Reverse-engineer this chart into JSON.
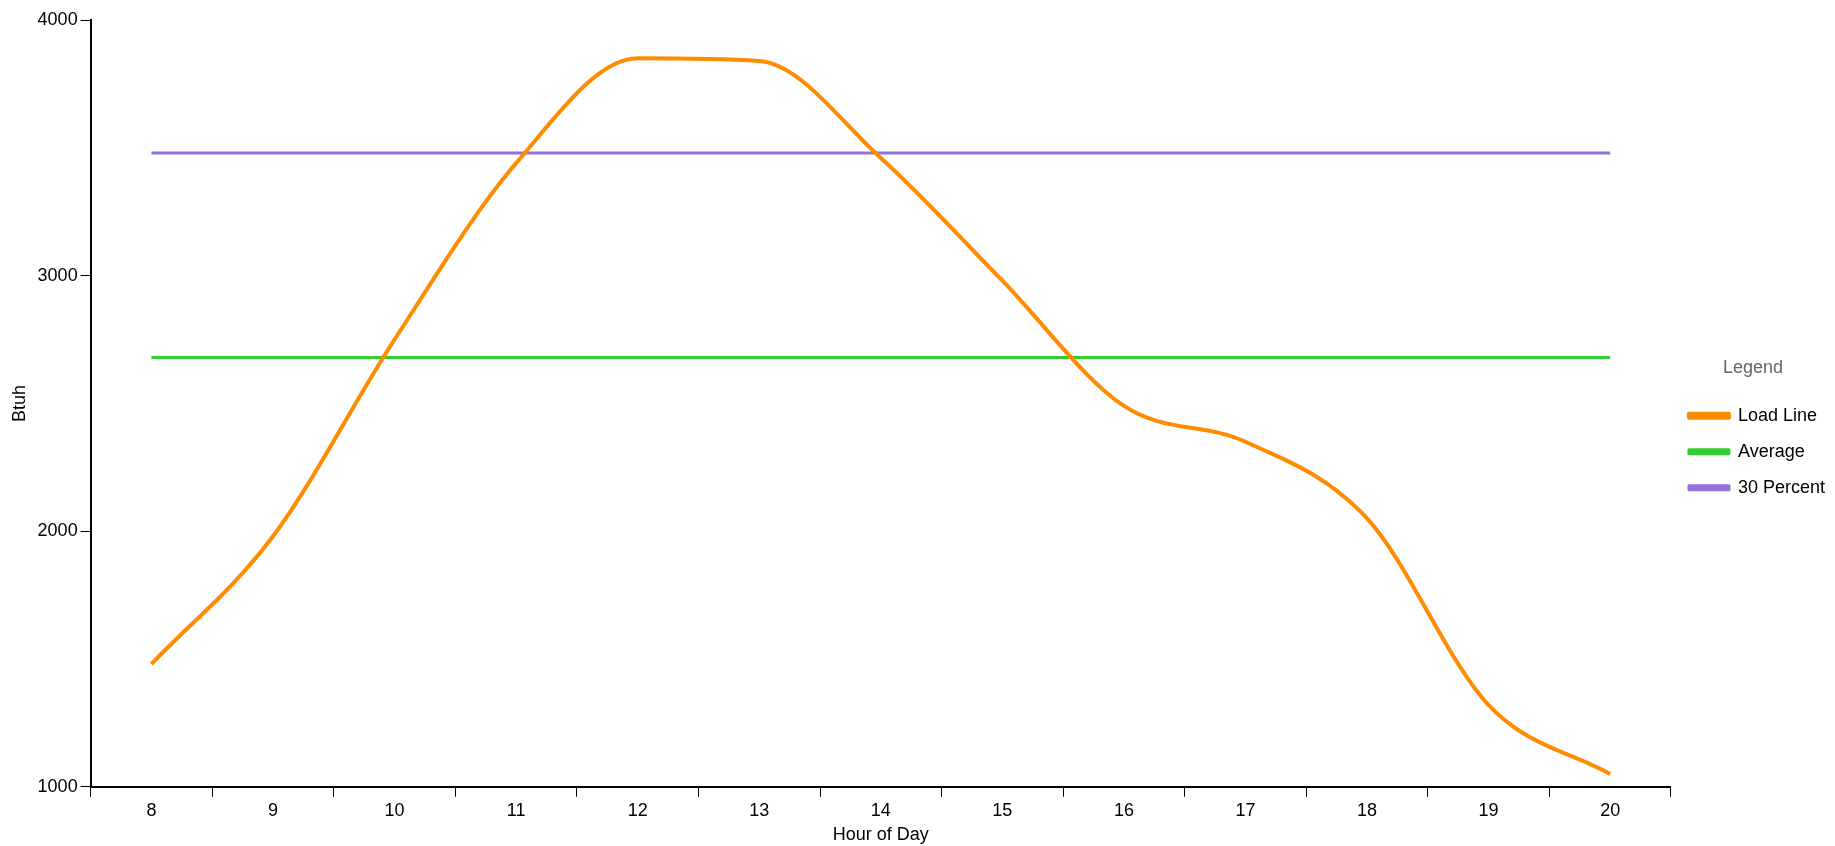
{
  "chart_data": {
    "type": "line",
    "xlabel": "Hour of Day",
    "ylabel": "Btuh",
    "legend_title": "Legend",
    "categories": [
      "8",
      "9",
      "10",
      "11",
      "12",
      "13",
      "14",
      "15",
      "16",
      "17",
      "18",
      "19",
      "20"
    ],
    "series": [
      {
        "name": "Load Line",
        "color": "#ff8c00",
        "values": [
          1480,
          1980,
          2750,
          3440,
          3850,
          3840,
          3460,
          2980,
          2490,
          2350,
          2050,
          1320,
          1050
        ]
      },
      {
        "name": "Average",
        "color": "#32cd32",
        "values": [
          2680,
          2680,
          2680,
          2680,
          2680,
          2680,
          2680,
          2680,
          2680,
          2680,
          2680,
          2680,
          2680
        ]
      },
      {
        "name": "30 Percent",
        "color": "#9370db",
        "values": [
          3480,
          3480,
          3480,
          3480,
          3480,
          3480,
          3480,
          3480,
          3480,
          3480,
          3480,
          3480,
          3480
        ]
      }
    ],
    "ylim": [
      1000,
      4000
    ],
    "yticks": [
      1000,
      2000,
      3000,
      4000
    ],
    "grid": false,
    "legend": "right",
    "marker": "none",
    "line_style": "solid"
  }
}
